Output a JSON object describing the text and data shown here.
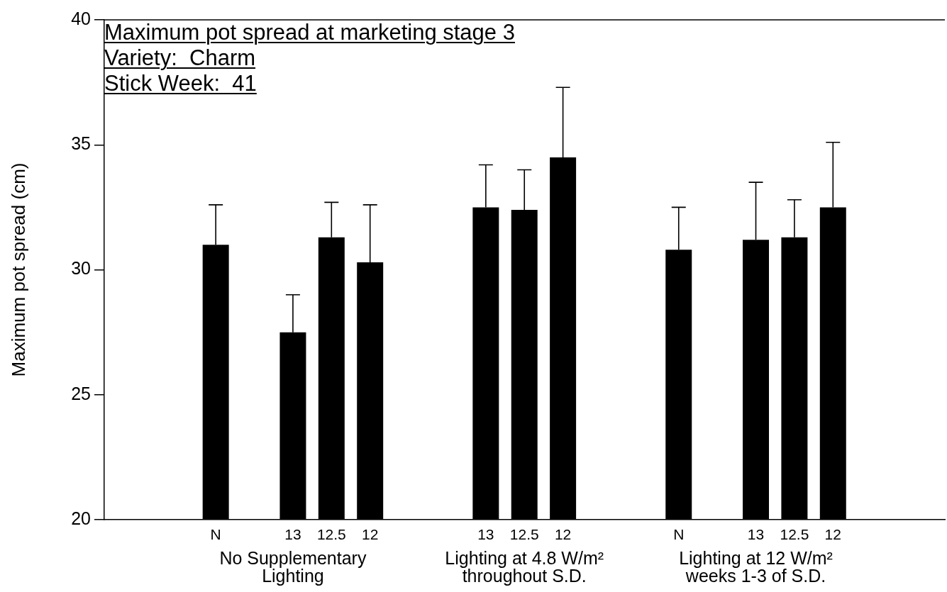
{
  "chart_data": {
    "type": "bar",
    "title": "Maximum pot spread at marketing stage 3",
    "annotations": [
      "Variety:  Charm",
      "Stick Week:  41",
      "No Supplementary Lighting",
      "Lighting at 4.8 W/m² throughout S.D.",
      "Lighting at 12 W/m² weeks 1-3 of S.D."
    ],
    "ylabel": "Maximum pot spread (cm)",
    "categories": [
      "N",
      null,
      "13",
      "12.5",
      "12",
      null,
      null,
      "13",
      "12.5",
      "12",
      null,
      null,
      "N",
      null,
      "13",
      "12.5",
      "12"
    ],
    "values": [
      31.0,
      null,
      27.5,
      31.3,
      30.3,
      null,
      null,
      32.5,
      32.4,
      34.5,
      null,
      null,
      30.8,
      null,
      31.2,
      31.3,
      32.5
    ],
    "errors": [
      [
        31.0,
        32.6
      ],
      null,
      [
        27.5,
        29.0
      ],
      [
        31.3,
        32.7
      ],
      [
        30.3,
        32.6
      ],
      null,
      null,
      [
        32.5,
        34.2
      ],
      [
        32.4,
        34.0
      ],
      [
        34.5,
        37.3
      ],
      null,
      null,
      [
        30.8,
        32.5
      ],
      null,
      [
        31.2,
        33.5
      ],
      [
        31.3,
        32.8
      ],
      [
        32.5,
        35.1
      ]
    ],
    "color": "#000000",
    "ylim": [
      20,
      40
    ],
    "yticks": [
      20,
      25,
      30,
      35,
      40
    ]
  }
}
